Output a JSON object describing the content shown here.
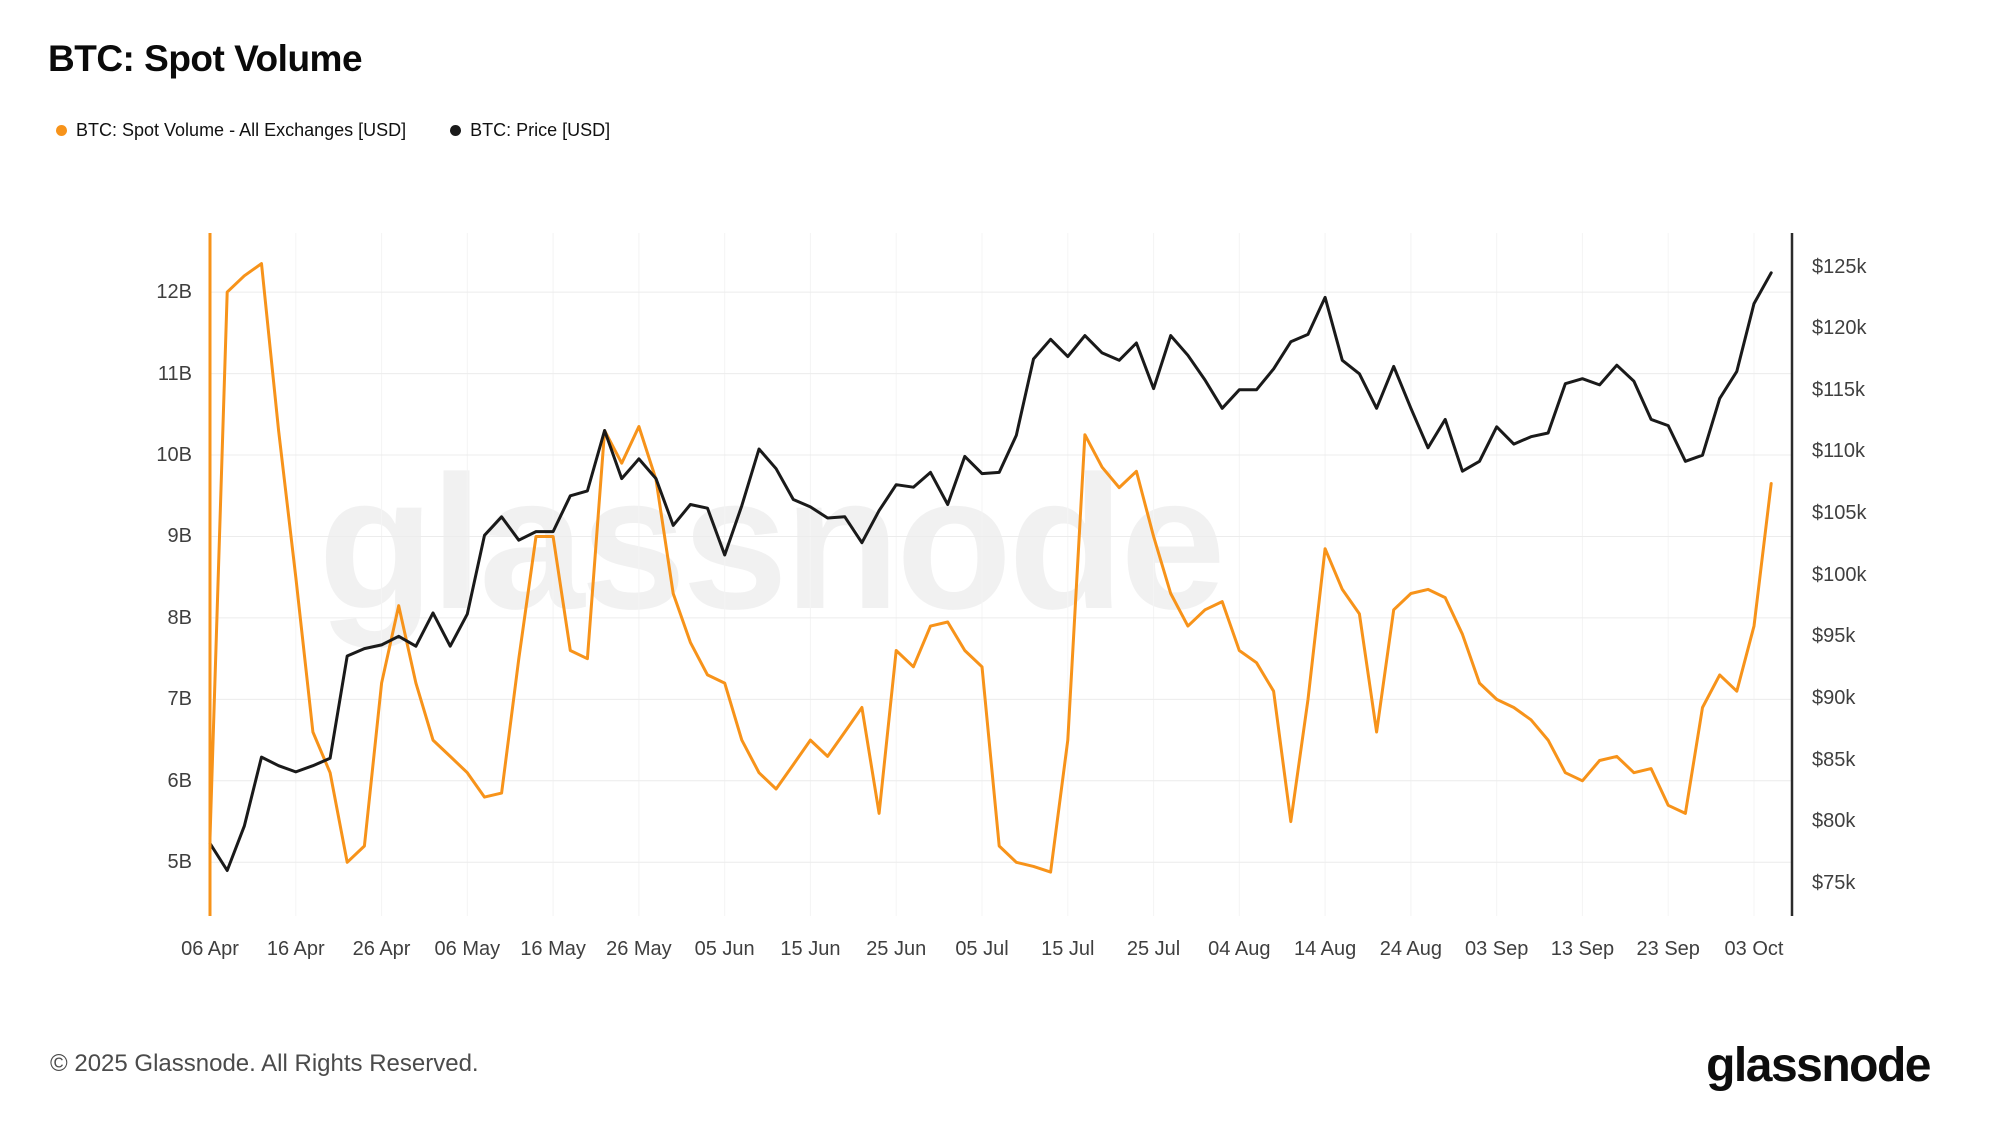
{
  "page": {
    "title": "BTC: Spot Volume",
    "footer_copyright": "© 2025 Glassnode. All Rights Reserved.",
    "brand_logo": "glassnode",
    "watermark": "glassnode"
  },
  "legend": [
    {
      "label": "BTC: Spot Volume - All Exchanges [USD]",
      "color": "#F7931A"
    },
    {
      "label": "BTC: Price [USD]",
      "color": "#1A1A1A"
    }
  ],
  "chart_data": {
    "type": "line",
    "title": "BTC: Spot Volume",
    "grid": true,
    "legend_position": "top-left",
    "x_axis": {
      "tick_labels": [
        "06 Apr",
        "16 Apr",
        "26 Apr",
        "06 May",
        "16 May",
        "26 May",
        "05 Jun",
        "15 Jun",
        "25 Jun",
        "05 Jul",
        "15 Jul",
        "25 Jul",
        "04 Aug",
        "14 Aug",
        "24 Aug",
        "03 Sep",
        "13 Sep",
        "23 Sep",
        "03 Oct"
      ],
      "tick_day_offsets": [
        0,
        10,
        20,
        30,
        40,
        50,
        60,
        70,
        80,
        90,
        100,
        110,
        120,
        130,
        140,
        150,
        160,
        170,
        180
      ],
      "sample_interval_days": 2,
      "total_days": 182
    },
    "left_axis": {
      "unit": "B",
      "tick_labels": [
        "5B",
        "6B",
        "7B",
        "8B",
        "9B",
        "10B",
        "11B",
        "12B"
      ],
      "tick_values": [
        5,
        6,
        7,
        8,
        9,
        10,
        11,
        12
      ],
      "range": [
        4.35,
        12.72
      ],
      "spine_color": "#F7931A"
    },
    "right_axis": {
      "unit": "$k",
      "tick_labels": [
        "$75k",
        "$80k",
        "$85k",
        "$90k",
        "$95k",
        "$100k",
        "$105k",
        "$110k",
        "$115k",
        "$120k",
        "$125k"
      ],
      "tick_values": [
        75,
        80,
        85,
        90,
        95,
        100,
        105,
        110,
        115,
        120,
        125
      ],
      "range": [
        72.3,
        127.7
      ],
      "spine_color": "#2B2B2B"
    },
    "series": [
      {
        "name": "BTC: Spot Volume - All Exchanges [USD]",
        "axis": "left",
        "color": "#F7931A",
        "unit": "B USD",
        "values": [
          5.3,
          12.0,
          12.2,
          12.35,
          10.3,
          8.5,
          6.6,
          6.1,
          5.0,
          5.2,
          7.2,
          8.15,
          7.2,
          6.5,
          6.3,
          6.1,
          5.8,
          5.85,
          7.5,
          9.0,
          9.0,
          7.6,
          7.5,
          10.3,
          9.9,
          10.35,
          9.7,
          8.3,
          7.7,
          7.3,
          7.2,
          6.5,
          6.1,
          5.9,
          6.2,
          6.5,
          6.3,
          6.6,
          6.9,
          5.6,
          7.6,
          7.4,
          7.9,
          7.95,
          7.6,
          7.4,
          5.2,
          5.0,
          4.95,
          4.88,
          6.5,
          10.25,
          9.85,
          9.6,
          9.8,
          9.0,
          8.3,
          7.9,
          8.1,
          8.2,
          7.6,
          7.45,
          7.1,
          5.5,
          7.0,
          8.85,
          8.35,
          8.05,
          6.6,
          8.1,
          8.3,
          8.35,
          8.25,
          7.8,
          7.2,
          7.0,
          6.9,
          6.75,
          6.5,
          6.1,
          6.0,
          6.25,
          6.3,
          6.1,
          6.15,
          5.7,
          5.6,
          6.9,
          7.3,
          7.1,
          7.9,
          9.65
        ]
      },
      {
        "name": "BTC: Price [USD]",
        "axis": "right",
        "color": "#1A1A1A",
        "unit": "k USD",
        "values": [
          78.2,
          76.0,
          79.6,
          85.2,
          84.5,
          84.0,
          84.5,
          85.1,
          93.4,
          94.0,
          94.3,
          95.0,
          94.2,
          96.9,
          94.2,
          96.8,
          103.2,
          104.7,
          102.8,
          103.5,
          103.5,
          106.4,
          106.8,
          111.7,
          107.8,
          109.4,
          107.8,
          104.0,
          105.7,
          105.4,
          101.6,
          105.6,
          110.2,
          108.6,
          106.1,
          105.5,
          104.6,
          104.7,
          102.6,
          105.2,
          107.3,
          107.1,
          108.3,
          105.7,
          109.6,
          108.2,
          108.3,
          111.3,
          117.5,
          119.1,
          117.7,
          119.4,
          118.0,
          117.4,
          118.8,
          115.1,
          119.4,
          117.8,
          115.8,
          113.5,
          115.0,
          115.0,
          116.7,
          118.9,
          119.5,
          122.5,
          117.4,
          116.3,
          113.5,
          116.9,
          113.5,
          110.3,
          112.6,
          108.4,
          109.2,
          112.0,
          110.6,
          111.2,
          111.5,
          115.5,
          115.9,
          115.4,
          117.0,
          115.7,
          112.6,
          112.1,
          109.2,
          109.7,
          114.3,
          116.5,
          122.0,
          124.5
        ]
      }
    ]
  }
}
